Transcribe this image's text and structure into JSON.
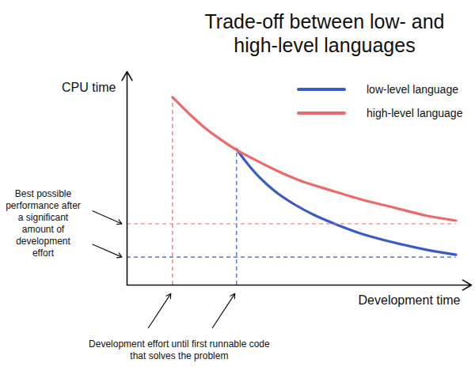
{
  "chart_data": {
    "type": "line",
    "title": "Trade-off between low- and high-level languages",
    "x_label": "Development time",
    "y_label": "CPU time",
    "xlim": [
      0,
      100
    ],
    "ylim": [
      0,
      100
    ],
    "tick_labels": false,
    "grid": false,
    "legend": "upper right",
    "series": [
      {
        "name": "low-level language",
        "color": "#3b5bc4",
        "x": [
          31.8,
          35.2,
          38.6,
          43.2,
          48.9,
          54.5,
          61.4,
          68.2,
          77.3,
          86.4,
          95.5
        ],
        "values": [
          63.6,
          56.4,
          50.2,
          43.6,
          37.5,
          32.7,
          28.0,
          24.0,
          20.0,
          16.7,
          14.2
        ],
        "first_runnable": 31.8,
        "best_performance": 13.1
      },
      {
        "name": "high-level language",
        "color": "#ee6a6a",
        "x": [
          13.2,
          18.2,
          22.7,
          27.3,
          31.8,
          36.4,
          43.2,
          50.0,
          59.1,
          68.2,
          77.3,
          86.4,
          95.5
        ],
        "values": [
          88.0,
          80.0,
          73.5,
          68.0,
          63.3,
          59.3,
          53.8,
          49.1,
          44.4,
          40.0,
          36.4,
          32.7,
          30.2
        ],
        "first_runnable": 13.2,
        "best_performance": 28.7
      }
    ],
    "annotations": {
      "best_performance": "Best possible performance after a significant amount of development effort",
      "first_runnable": "Development effort until first runnable code that solves the problem"
    }
  }
}
